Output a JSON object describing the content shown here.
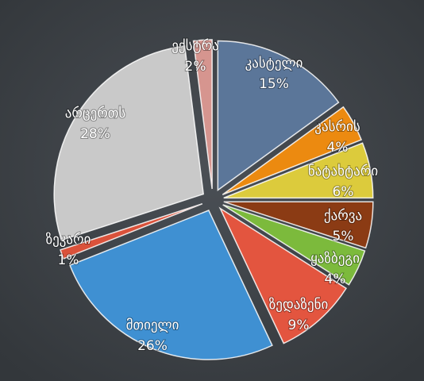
{
  "chart_data": {
    "type": "pie",
    "categories": [
      "კასტელი",
      "კასრის",
      "ნატახტარი",
      "ქარვა",
      "ყაზბეგი",
      "ზედაზენი",
      "მთიელი",
      "ზეკარი",
      "არცერთს",
      "ექსტრა"
    ],
    "values": [
      15,
      4,
      6,
      5,
      4,
      9,
      26,
      1,
      28,
      2
    ],
    "value_labels": [
      "15%",
      "4%",
      "6%",
      "5%",
      "4%",
      "9%",
      "26%",
      "1%",
      "28%",
      "2%"
    ],
    "colors": [
      "#5b7699",
      "#ec8a10",
      "#dccb3c",
      "#8b3b14",
      "#7cba3c",
      "#e3553f",
      "#3f90d2",
      "#da523b",
      "#c9c9c9",
      "#d6958f"
    ]
  }
}
